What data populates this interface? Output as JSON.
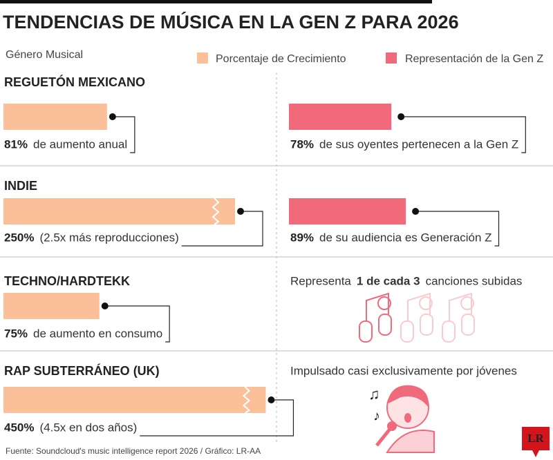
{
  "title": "TENDENCIAS DE MÚSICA EN LA GEN Z PARA 2026",
  "legend": {
    "genre_label": "Género Musical",
    "growth": "Porcentaje de Crecimiento",
    "genz": "Representación de la Gen Z"
  },
  "colors": {
    "growth": "#fbbf9a",
    "genz": "#f06a7c"
  },
  "rows": [
    {
      "genre": "REGUETÓN MEXICANO",
      "growth": {
        "value": 81,
        "label": "81%",
        "text": "de aumento anual"
      },
      "genz": {
        "value": 78,
        "label": "78%",
        "text": "de sus oyentes pertenecen a la Gen Z"
      }
    },
    {
      "genre": "INDIE",
      "growth": {
        "value": 250,
        "label": "250%",
        "text": "(2.5x más reproducciones)"
      },
      "genz": {
        "value": 89,
        "label": "89%",
        "text": "de su audiencia es Generación Z"
      }
    },
    {
      "genre": "TECHNO/HARDTEKK",
      "growth": {
        "value": 75,
        "label": "75%",
        "text": "de aumento en consumo"
      },
      "note": [
        "Representa",
        "1 de cada 3",
        "canciones subidas"
      ]
    },
    {
      "genre": "RAP SUBTERRÁNEO (UK)",
      "growth": {
        "value": 450,
        "label": "450%",
        "text": "(4.5x en dos años)"
      },
      "note": [
        "Impulsado casi exclusivamente por jóvenes"
      ]
    }
  ],
  "source": "Fuente: Soundcloud's music intelligence report 2026 / Gráfico: LR-AA",
  "logo": "LR"
}
